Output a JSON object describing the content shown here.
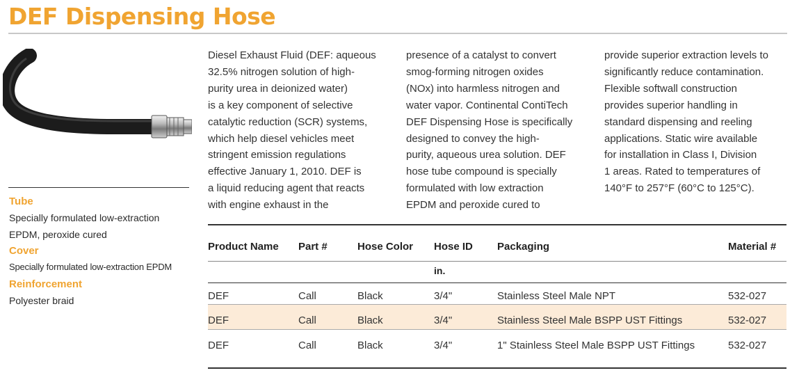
{
  "title": "DEF Dispensing Hose",
  "specs": {
    "tube_label": "Tube",
    "tube_line1": "Specially formulated low-extraction",
    "tube_line2": "EPDM, peroxide cured",
    "cover_label": "Cover",
    "cover_text": "Specially formulated low-extraction EPDM",
    "reinforcement_label": "Reinforcement",
    "reinforcement_text": "Polyester braid"
  },
  "description": {
    "col1": "Diesel Exhaust Fluid (DEF: aqueous\n32.5% nitrogen solution of high-\npurity urea in deionized water)\nis a key component of selective\ncatalytic reduction (SCR) systems,\nwhich help diesel vehicles meet\nstringent emission regulations\neffective January 1, 2010. DEF is\na liquid reducing agent that reacts\nwith engine exhaust in the",
    "col2": "presence of a catalyst to convert\nsmog-forming nitrogen oxides\n(NOx) into harmless nitrogen and\nwater vapor. Continental ContiTech\nDEF Dispensing Hose is specifically\ndesigned to convey the high-\npurity, aqueous urea solution. DEF\nhose tube compound is specially\nformulated with low extraction\nEPDM and peroxide cured to",
    "col3": "provide superior extraction levels to\nsignificantly reduce contamination.\nFlexible softwall construction\nprovides superior handling in\nstandard dispensing and reeling\napplications. Static wire available\nfor installation in Class I, Division\n1 areas. Rated to temperatures of\n140°F to 257°F (60°C to 125°C)."
  },
  "table": {
    "headers": [
      "Product Name",
      "Part #",
      "Hose Color",
      "Hose ID",
      "Packaging",
      "Material #"
    ],
    "hose_id_unit": "in.",
    "rows": [
      [
        "DEF",
        "Call",
        "Black",
        "3/4\"",
        "Stainless Steel Male NPT",
        "532-027"
      ],
      [
        "DEF",
        "Call",
        "Black",
        "3/4\"",
        "Stainless Steel Male BSPP UST Fittings",
        "532-027"
      ],
      [
        "DEF",
        "Call",
        "Black",
        "3/4\"",
        "1\" Stainless Steel Male BSPP UST Fittings",
        "532-027"
      ]
    ],
    "highlight_color": "#fcebd8"
  },
  "colors": {
    "accent": "#f0a431",
    "text": "#2a2a2a"
  },
  "image": {
    "icon": "hose-with-fitting-icon"
  }
}
